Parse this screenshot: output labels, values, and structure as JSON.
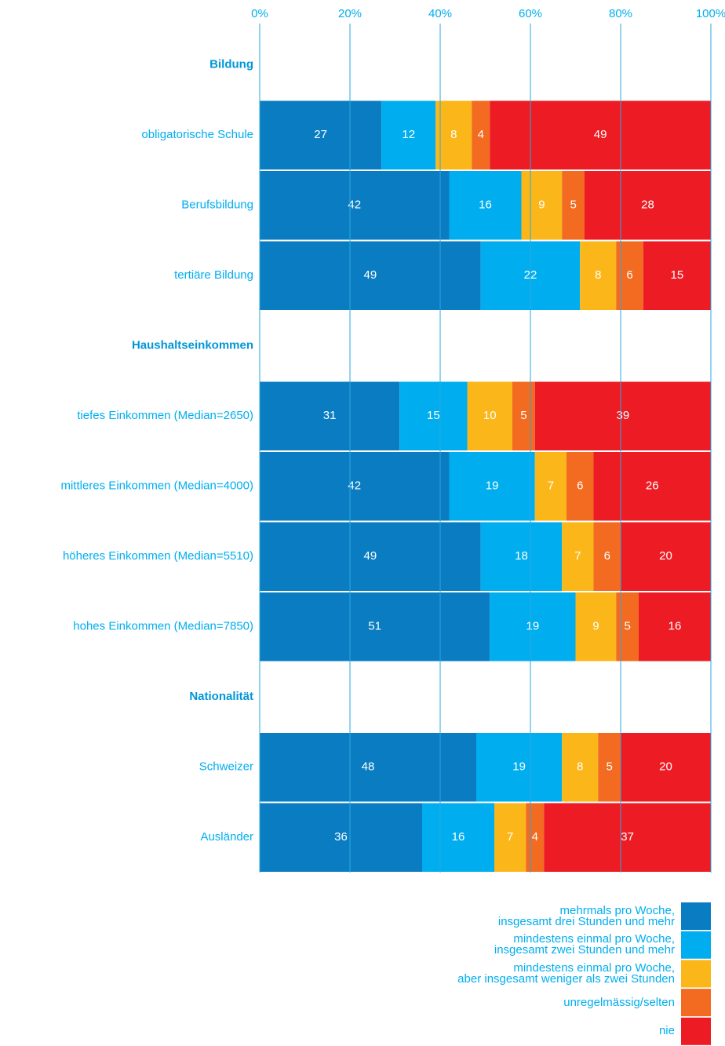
{
  "chart_data": {
    "type": "stacked_bar_horizontal",
    "categories": [
      "Bildung",
      "obligatorische Schule",
      "Berufsbildung",
      "tertiäre Bildung",
      "Haushaltseinkommen",
      "tiefes Einkommen (Median=2650)",
      "mittleres Einkommen (Median=4000)",
      "höheres Einkommen (Median=5510)",
      "hohes Einkommen (Median=7850)",
      "Nationalität",
      "Schweizer",
      "Ausländer"
    ],
    "series": [
      {
        "name": "mehrmals pro Woche,\ninsgesamt drei Stunden und mehr",
        "color": "#0a7dc2",
        "values": [
          null,
          27,
          42,
          49,
          null,
          31,
          42,
          49,
          51,
          null,
          48,
          36
        ]
      },
      {
        "name": "mindestens einmal pro Woche,\ninsgesamt zwei Stunden und mehr",
        "color": "#00aeef",
        "values": [
          null,
          12,
          16,
          22,
          null,
          15,
          19,
          18,
          19,
          null,
          19,
          16
        ]
      },
      {
        "name": "mindestens einmal pro Woche,\naber insgesamt weniger als zwei Stunden",
        "color": "#fbb71a",
        "values": [
          null,
          8,
          9,
          8,
          null,
          10,
          7,
          7,
          9,
          null,
          8,
          7
        ]
      },
      {
        "name": "unregelmässig/selten",
        "color": "#f26b21",
        "values": [
          null,
          4,
          5,
          6,
          null,
          5,
          6,
          6,
          5,
          null,
          5,
          4
        ]
      },
      {
        "name": "nie",
        "color": "#ed1c24",
        "values": [
          null,
          49,
          28,
          15,
          null,
          39,
          26,
          20,
          16,
          null,
          20,
          37
        ]
      }
    ],
    "xlim": [
      0,
      100
    ],
    "xticks": [
      {
        "value": 0,
        "label": "0%"
      },
      {
        "value": 20,
        "label": "20%"
      },
      {
        "value": 40,
        "label": "40%"
      },
      {
        "value": 60,
        "label": "60%"
      },
      {
        "value": 80,
        "label": "80%"
      },
      {
        "value": 100,
        "label": "100%"
      }
    ],
    "grid": true,
    "legend": "bottom-right"
  }
}
